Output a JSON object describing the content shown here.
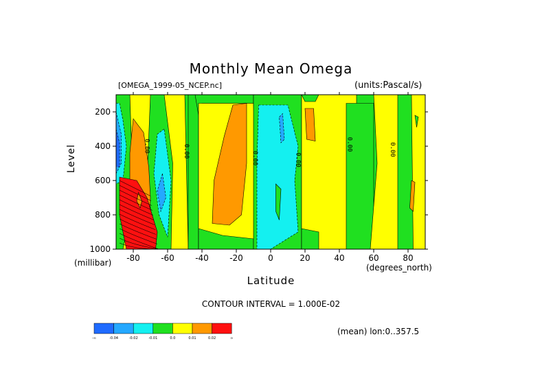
{
  "title": "Monthly Mean Omega",
  "file_label": "[OMEGA_1999-05_NCEP.nc]",
  "units_label": "(units:Pascal/s)",
  "y_axis_label": "Level",
  "y_unit_label": "(millibar)",
  "x_axis_label": "Latitude",
  "x_unit_label": "(degrees_north)",
  "contour_interval": "CONTOUR INTERVAL = 1.000E-02",
  "mean_note": "(mean) lon:0..357.5",
  "chart_data": {
    "type": "heatmap",
    "title": "Monthly Mean Omega",
    "xlabel": "Latitude",
    "ylabel": "Level",
    "x_ticks": [
      "-80",
      "-60",
      "-40",
      "-20",
      "0",
      "20",
      "40",
      "60",
      "80"
    ],
    "x_tick_values": [
      -80,
      -60,
      -40,
      -20,
      0,
      20,
      40,
      60,
      80
    ],
    "y_ticks": [
      "200",
      "400",
      "600",
      "800",
      "1000"
    ],
    "y_tick_values": [
      200,
      400,
      600,
      800,
      1000
    ],
    "xlim": [
      -90,
      90
    ],
    "ylim": [
      100,
      1000
    ],
    "y_inverted": true,
    "contour_labels": [
      {
        "text": "0.00",
        "lat": -73,
        "level": 400
      },
      {
        "text": "0.00",
        "lat": -50,
        "level": 430
      },
      {
        "text": "0.00",
        "lat": -10,
        "level": 470
      },
      {
        "text": "0.00",
        "lat": 15,
        "level": 480
      },
      {
        "text": "0.00",
        "lat": 45,
        "level": 390
      },
      {
        "text": "0.00",
        "lat": 70,
        "level": 420
      }
    ],
    "colorbar": {
      "colors": [
        "#1f6bff",
        "#24a8ff",
        "#14f0f0",
        "#20e020",
        "#ffff00",
        "#ff9900",
        "#ff1010"
      ],
      "labels": [
        "-∞",
        "-0.04",
        "-0.02",
        "-0.01",
        "0.0",
        "0.01",
        "0.02",
        "∞"
      ]
    },
    "regions": [
      {
        "level": 1,
        "points": [
          [
            -90,
            100
          ],
          [
            -50,
            100
          ],
          [
            -48,
            1000
          ],
          [
            -90,
            1000
          ]
        ]
      },
      {
        "level": 0,
        "points": [
          [
            -88,
            100
          ],
          [
            -82,
            100
          ],
          [
            -80,
            700
          ],
          [
            -86,
            1000
          ],
          [
            -90,
            1000
          ],
          [
            -90,
            100
          ]
        ]
      },
      {
        "level": 0,
        "points": [
          [
            -62,
            100
          ],
          [
            -70,
            100
          ],
          [
            -72,
            600
          ],
          [
            -67,
            1000
          ],
          [
            -58,
            1000
          ],
          [
            -57,
            500
          ]
        ]
      },
      {
        "level": -1,
        "points": [
          [
            -62,
            300
          ],
          [
            -66,
            330
          ],
          [
            -68,
            560
          ],
          [
            -65,
            800
          ],
          [
            -60,
            930
          ],
          [
            -58,
            600
          ]
        ]
      },
      {
        "level": -2,
        "points": [
          [
            -63,
            560
          ],
          [
            -66,
            660
          ],
          [
            -64,
            780
          ],
          [
            -61,
            700
          ]
        ]
      },
      {
        "level": -1,
        "points": [
          [
            -90,
            150
          ],
          [
            -88,
            150
          ],
          [
            -86,
            250
          ],
          [
            -84,
            400
          ],
          [
            -86,
            600
          ],
          [
            -90,
            620
          ]
        ]
      },
      {
        "level": -2,
        "points": [
          [
            -90,
            200
          ],
          [
            -87,
            330
          ],
          [
            -87,
            500
          ],
          [
            -90,
            560
          ]
        ]
      },
      {
        "level": -4,
        "points": [
          [
            -90,
            300
          ],
          [
            -88,
            380
          ],
          [
            -88,
            520
          ],
          [
            -90,
            520
          ]
        ]
      },
      {
        "level": 2,
        "points": [
          [
            -80,
            240
          ],
          [
            -74,
            320
          ],
          [
            -71,
            520
          ],
          [
            -70,
            700
          ],
          [
            -71,
            1000
          ],
          [
            -80,
            1000
          ],
          [
            -82,
            700
          ],
          [
            -82,
            440
          ]
        ]
      },
      {
        "level": 3,
        "points": [
          [
            -88,
            580
          ],
          [
            -78,
            600
          ],
          [
            -72,
            700
          ],
          [
            -66,
            900
          ],
          [
            -67,
            1000
          ],
          [
            -84,
            1000
          ],
          [
            -88,
            800
          ]
        ]
      },
      {
        "level": 2,
        "points": [
          [
            -77,
            670
          ],
          [
            -75,
            720
          ],
          [
            -76,
            760
          ],
          [
            -78,
            720
          ]
        ]
      },
      {
        "level": 0,
        "points": [
          [
            -48,
            100
          ],
          [
            -42,
            100
          ],
          [
            -42,
            1000
          ],
          [
            -48,
            1000
          ]
        ]
      },
      {
        "level": 0,
        "points": [
          [
            -44,
            100
          ],
          [
            -10,
            100
          ],
          [
            -10,
            150
          ],
          [
            -40,
            150
          ],
          [
            -42,
            220
          ]
        ]
      },
      {
        "level": 1,
        "points": [
          [
            -42,
            150
          ],
          [
            -10,
            150
          ],
          [
            -8,
            1000
          ],
          [
            -42,
            1000
          ]
        ]
      },
      {
        "level": 0,
        "points": [
          [
            -42,
            880
          ],
          [
            -28,
            920
          ],
          [
            -10,
            940
          ],
          [
            -10,
            1000
          ],
          [
            -42,
            1000
          ]
        ]
      },
      {
        "level": 2,
        "points": [
          [
            -27,
            340
          ],
          [
            -22,
            160
          ],
          [
            -14,
            150
          ],
          [
            -14,
            500
          ],
          [
            -17,
            800
          ],
          [
            -24,
            860
          ],
          [
            -34,
            850
          ],
          [
            -33,
            600
          ]
        ]
      },
      {
        "level": 0,
        "points": [
          [
            -10,
            100
          ],
          [
            18,
            100
          ],
          [
            18,
            1000
          ],
          [
            -10,
            1000
          ]
        ]
      },
      {
        "level": -1,
        "points": [
          [
            -7,
            160
          ],
          [
            10,
            160
          ],
          [
            16,
            400
          ],
          [
            14,
            600
          ],
          [
            16,
            900
          ],
          [
            0,
            1000
          ],
          [
            -8,
            1000
          ],
          [
            -8,
            500
          ]
        ]
      },
      {
        "level": -2,
        "points": [
          [
            5,
            230
          ],
          [
            7,
            210
          ],
          [
            8,
            360
          ],
          [
            6,
            380
          ]
        ]
      },
      {
        "level": 0,
        "points": [
          [
            3,
            620
          ],
          [
            6,
            650
          ],
          [
            5,
            830
          ],
          [
            3,
            780
          ]
        ]
      },
      {
        "level": 1,
        "points": [
          [
            18,
            100
          ],
          [
            50,
            100
          ],
          [
            50,
            160
          ],
          [
            46,
            180
          ],
          [
            47,
            1000
          ],
          [
            18,
            1000
          ]
        ]
      },
      {
        "level": 0,
        "points": [
          [
            18,
            100
          ],
          [
            28,
            100
          ],
          [
            26,
            140
          ],
          [
            20,
            140
          ]
        ]
      },
      {
        "level": 2,
        "points": [
          [
            20,
            180
          ],
          [
            25,
            180
          ],
          [
            26,
            370
          ],
          [
            21,
            360
          ]
        ]
      },
      {
        "level": 0,
        "points": [
          [
            44,
            150
          ],
          [
            60,
            150
          ],
          [
            60,
            1000
          ],
          [
            44,
            1000
          ]
        ]
      },
      {
        "level": 0,
        "points": [
          [
            18,
            880
          ],
          [
            28,
            900
          ],
          [
            28,
            1000
          ],
          [
            18,
            1000
          ]
        ]
      },
      {
        "level": 1,
        "points": [
          [
            60,
            100
          ],
          [
            90,
            100
          ],
          [
            90,
            1000
          ],
          [
            58,
            1000
          ],
          [
            62,
            500
          ]
        ]
      },
      {
        "level": 0,
        "points": [
          [
            74,
            100
          ],
          [
            82,
            100
          ],
          [
            83,
            1000
          ],
          [
            74,
            1000
          ]
        ]
      },
      {
        "level": 2,
        "points": [
          [
            82,
            600
          ],
          [
            84,
            610
          ],
          [
            83,
            780
          ],
          [
            81,
            760
          ]
        ]
      },
      {
        "level": 0,
        "points": [
          [
            84,
            220
          ],
          [
            86,
            230
          ],
          [
            85,
            290
          ]
        ]
      }
    ]
  }
}
